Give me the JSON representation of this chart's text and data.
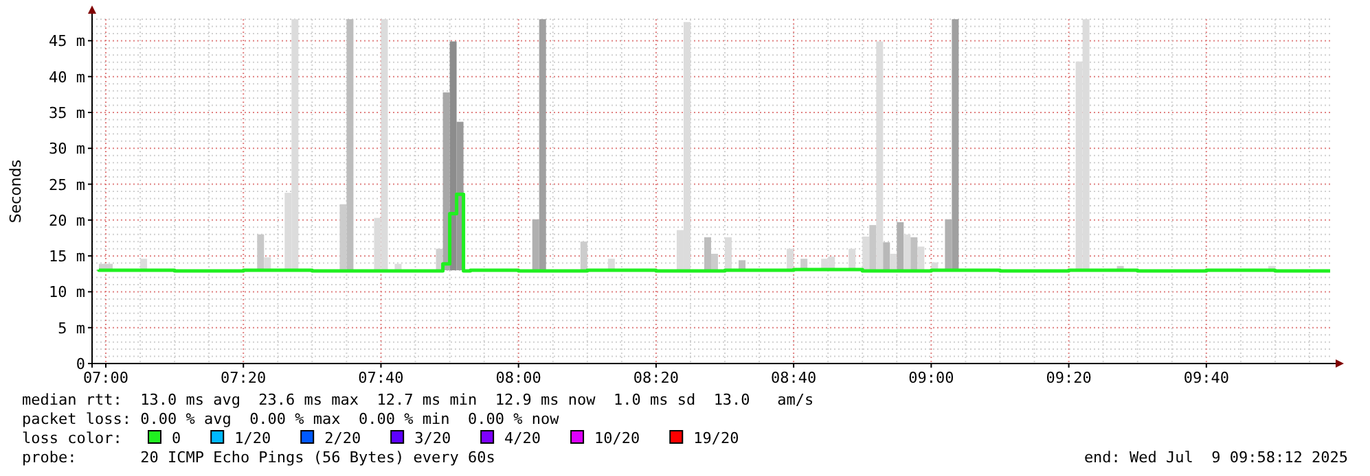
{
  "chart_data": {
    "type": "bar",
    "ylabel": "Seconds",
    "legend_title": "loss color:",
    "legend": "bottom",
    "grid": true,
    "xlim": [
      "2025-07-09T06:58",
      "2025-07-09T09:58"
    ],
    "xticks": [
      {
        "value": "2025-07-09T07:00",
        "label": "07:00"
      },
      {
        "value": "2025-07-09T07:20",
        "label": "07:20"
      },
      {
        "value": "2025-07-09T07:40",
        "label": "07:40"
      },
      {
        "value": "2025-07-09T08:00",
        "label": "08:00"
      },
      {
        "value": "2025-07-09T08:20",
        "label": "08:20"
      },
      {
        "value": "2025-07-09T08:40",
        "label": "08:40"
      },
      {
        "value": "2025-07-09T09:00",
        "label": "09:00"
      },
      {
        "value": "2025-07-09T09:20",
        "label": "09:20"
      },
      {
        "value": "2025-07-09T09:40",
        "label": "09:40"
      }
    ],
    "ylim": [
      0,
      48
    ],
    "yticks": [
      0,
      {
        "value": 5,
        "label": "5 m"
      },
      {
        "value": 10,
        "label": "10 m"
      },
      {
        "value": 15,
        "label": "15 m"
      },
      {
        "value": 20,
        "label": "20 m"
      },
      {
        "value": 25,
        "label": "25 m"
      },
      {
        "value": 30,
        "label": "30 m"
      },
      {
        "value": 35,
        "label": "35 m"
      },
      {
        "value": 40,
        "label": "40 m"
      },
      {
        "value": 45,
        "label": "45 m"
      }
    ],
    "series": [
      {
        "x": [
          "2025-07-09T07:00",
          "2025-07-09T07:01",
          "2025-07-09T07:06",
          "2025-07-09T07:23",
          "2025-07-09T07:24",
          "2025-07-09T07:27",
          "2025-07-09T07:28",
          "2025-07-09T07:35",
          "2025-07-09T07:36",
          "2025-07-09T07:40",
          "2025-07-09T07:41",
          "2025-07-09T07:43",
          "2025-07-09T07:49",
          "2025-07-09T07:50",
          "2025-07-09T07:51",
          "2025-07-09T07:52",
          "2025-07-09T08:03",
          "2025-07-09T08:04",
          "2025-07-09T08:10",
          "2025-07-09T08:14",
          "2025-07-09T08:24",
          "2025-07-09T08:25",
          "2025-07-09T08:28",
          "2025-07-09T08:29",
          "2025-07-09T08:31",
          "2025-07-09T08:33",
          "2025-07-09T08:40",
          "2025-07-09T08:42",
          "2025-07-09T08:45",
          "2025-07-09T08:46",
          "2025-07-09T08:49",
          "2025-07-09T08:51",
          "2025-07-09T08:52",
          "2025-07-09T08:53",
          "2025-07-09T08:54",
          "2025-07-09T08:55",
          "2025-07-09T08:56",
          "2025-07-09T08:57",
          "2025-07-09T08:58",
          "2025-07-09T08:59",
          "2025-07-09T09:01",
          "2025-07-09T09:03",
          "2025-07-09T09:04",
          "2025-07-09T09:22",
          "2025-07-09T09:23",
          "2025-07-09T09:28",
          "2025-07-09T09:50"
        ],
        "base": [
          13,
          13,
          13,
          13,
          13,
          13,
          13,
          13,
          13,
          13,
          13,
          13,
          13,
          13,
          13,
          13,
          13,
          13,
          13,
          13,
          13,
          13,
          13,
          13,
          13,
          13,
          13,
          13,
          13,
          13,
          13,
          13,
          13,
          13,
          13,
          13,
          13,
          13,
          13,
          13,
          13,
          13,
          13,
          13,
          13,
          13,
          13
        ],
        "values": [
          0.9,
          0.9,
          1.6,
          5.0,
          1.8,
          10.8,
          35,
          9.2,
          35,
          7.3,
          35,
          0.9,
          3.0,
          24.8,
          31.9,
          20.7,
          7.1,
          35,
          4.0,
          1.6,
          5.6,
          34.6,
          4.6,
          2.3,
          4.6,
          1.4,
          3.0,
          1.6,
          1.6,
          1.9,
          3.0,
          4.7,
          6.3,
          31.9,
          3.9,
          2.3,
          6.7,
          5.0,
          4.6,
          3.3,
          1.1,
          7.1,
          35,
          29.1,
          35,
          0.6,
          0.6
        ],
        "colors": [
          "#d0d0d0",
          "#d0d0d0",
          "#dcdcdc",
          "#c8c8c8",
          "#dcdcdc",
          "#dcdcdc",
          "#dcdcdc",
          "#cccccc",
          "#bdbdbd",
          "#dcdcdc",
          "#dcdcdc",
          "#dcdcdc",
          "#d0d0d0",
          "#a8a8a8",
          "#8c8c8c",
          "#999999",
          "#b0b0b0",
          "#a0a0a0",
          "#cccccc",
          "#dcdcdc",
          "#dcdcdc",
          "#dcdcdc",
          "#bdbdbd",
          "#cccccc",
          "#dcdcdc",
          "#c0c0c0",
          "#dcdcdc",
          "#cccccc",
          "#dcdcdc",
          "#dcdcdc",
          "#dcdcdc",
          "#dcdcdc",
          "#c8c8c8",
          "#dcdcdc",
          "#b8b8b8",
          "#dcdcdc",
          "#b0b0b0",
          "#dcdcdc",
          "#c0c0c0",
          "#dcdcdc",
          "#dcdcdc",
          "#b0b0b0",
          "#a0a0a0",
          "#dcdcdc",
          "#dcdcdc",
          "#cccccc",
          "#dcdcdc"
        ]
      },
      {
        "type": "step",
        "name": "0",
        "color": "#20f020",
        "x": [
          "2025-07-09T06:59",
          "2025-07-09T07:10",
          "2025-07-09T07:20",
          "2025-07-09T07:30",
          "2025-07-09T07:40",
          "2025-07-09T07:49",
          "2025-07-09T07:50",
          "2025-07-09T07:51",
          "2025-07-09T07:52",
          "2025-07-09T07:53",
          "2025-07-09T08:00",
          "2025-07-09T08:10",
          "2025-07-09T08:20",
          "2025-07-09T08:30",
          "2025-07-09T08:40",
          "2025-07-09T08:50",
          "2025-07-09T09:00",
          "2025-07-09T09:10",
          "2025-07-09T09:20",
          "2025-07-09T09:30",
          "2025-07-09T09:40",
          "2025-07-09T09:50",
          "2025-07-09T09:58"
        ],
        "values": [
          13.1,
          13.0,
          12.9,
          13.0,
          12.9,
          12.9,
          13.9,
          20.9,
          23.6,
          12.9,
          13.0,
          12.9,
          13.0,
          12.9,
          13.0,
          13.1,
          12.9,
          13.0,
          12.9,
          13.0,
          12.9,
          13.0,
          12.9
        ]
      },
      {
        "type": "step",
        "name": "1/20",
        "color": "#00b8ff"
      },
      {
        "type": "step",
        "name": "2/20",
        "color": "#0059ff"
      },
      {
        "type": "step",
        "name": "3/20",
        "color": "#5e00ff"
      },
      {
        "type": "step",
        "name": "4/20",
        "color": "#7e00ff"
      },
      {
        "type": "step",
        "name": "10/20",
        "color": "#dd00ff"
      },
      {
        "type": "step",
        "name": "19/20",
        "color": "#ff0000"
      }
    ],
    "annotations": [
      "median rtt:  13.0 ms avg  23.6 ms max  12.7 ms min  12.9 ms now  1.0 ms sd  13.0   am/s",
      "packet loss: 0.00 % avg  0.00 % max  0.00 % min  0.00 % now",
      "probe:       20 ICMP Echo Pings (56 Bytes) every 60s",
      "end: Wed Jul  9 09:58:12 2025"
    ]
  }
}
